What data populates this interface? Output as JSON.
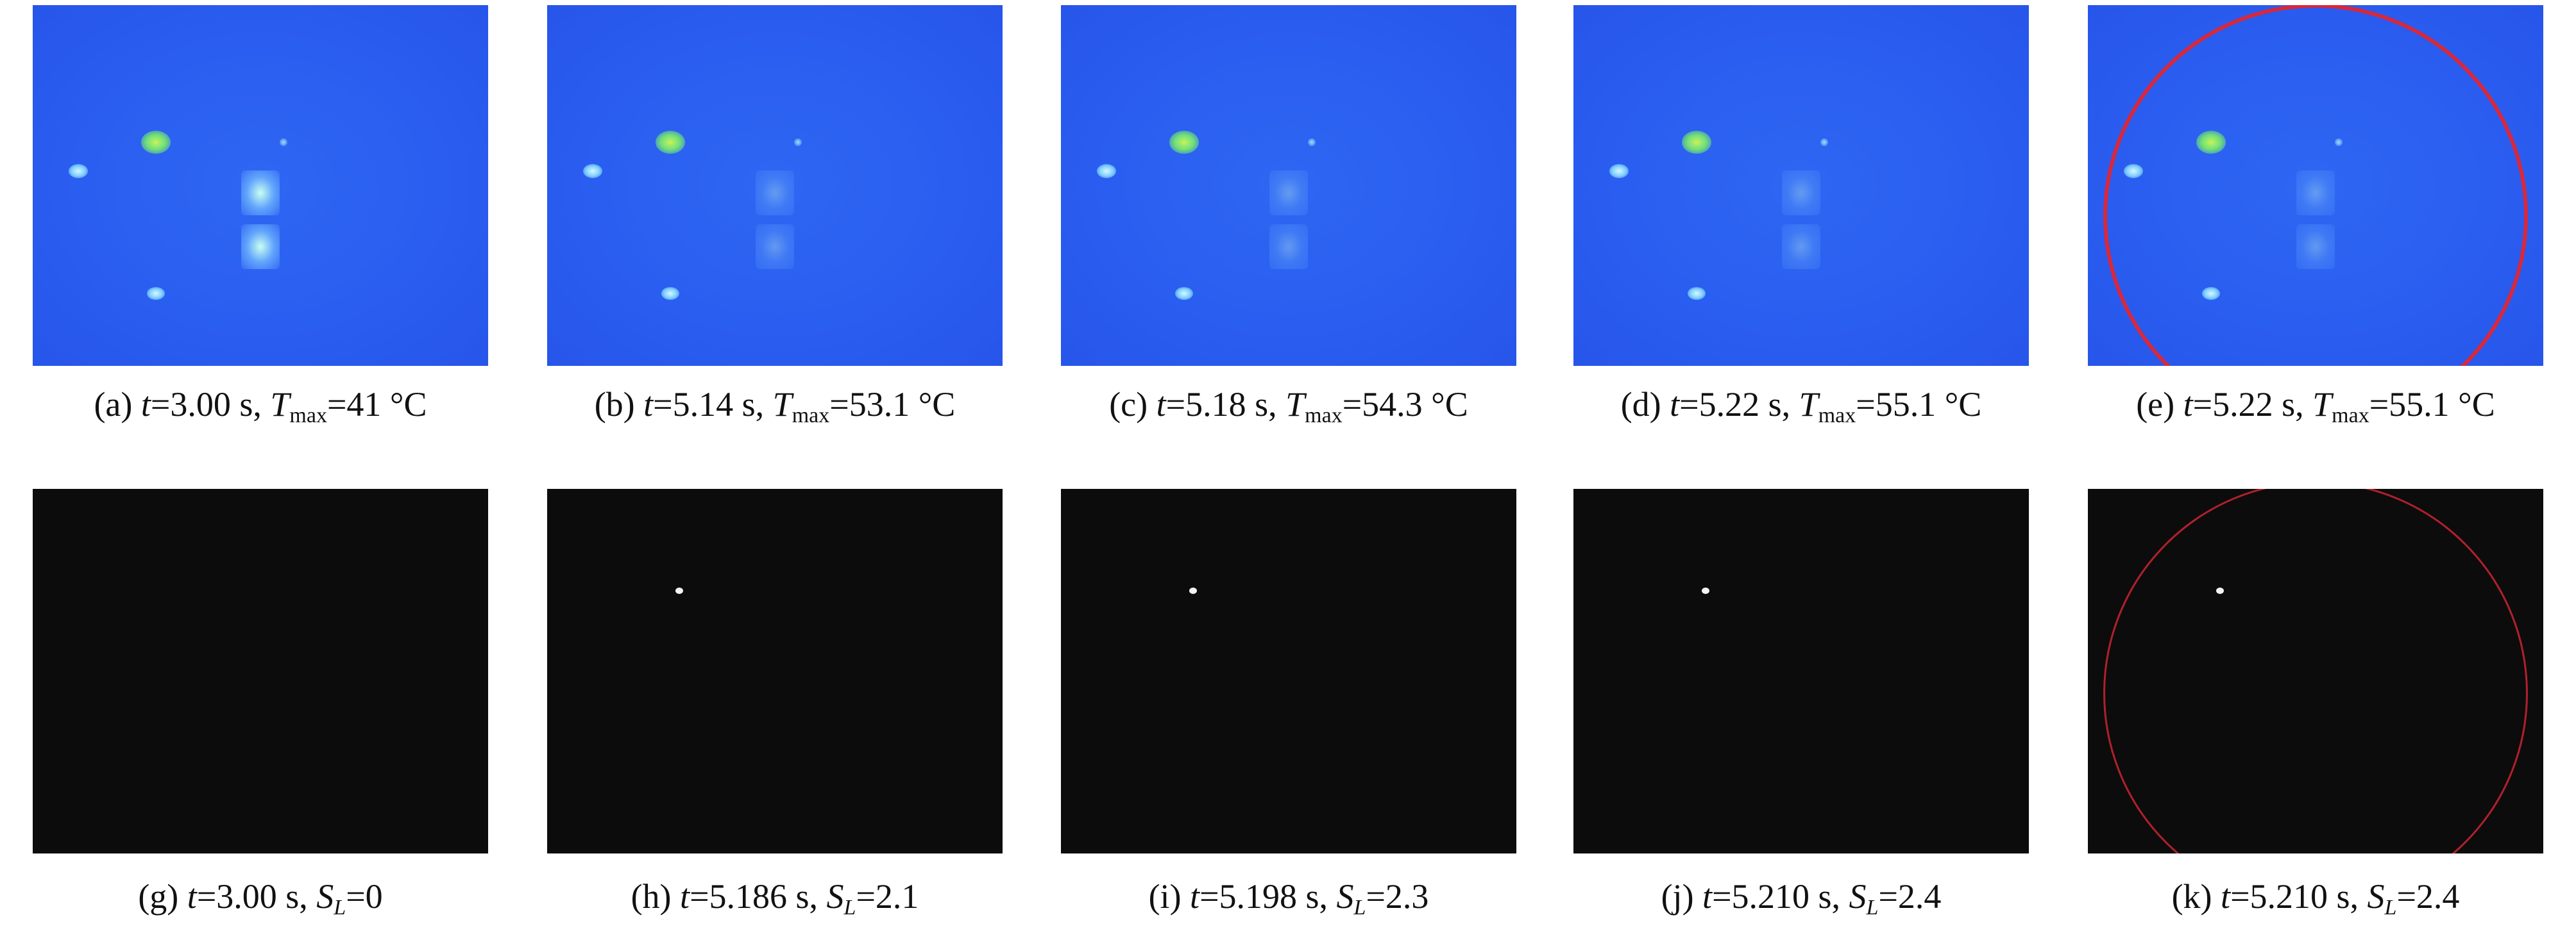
{
  "rows": [
    [
      {
        "label": "(a)",
        "var1": "t",
        "val1": "=3.00 s,",
        "var2": "T",
        "sub2": "max",
        "val2": "=41 °C"
      },
      {
        "label": "(b)",
        "var1": "t",
        "val1": "=5.14 s,",
        "var2": "T",
        "sub2": "max",
        "val2": "=53.1 °C"
      },
      {
        "label": "(c)",
        "var1": "t",
        "val1": "=5.18 s,",
        "var2": "T",
        "sub2": "max",
        "val2": "=54.3 °C"
      },
      {
        "label": "(d)",
        "var1": "t",
        "val1": "=5.22 s,",
        "var2": "T",
        "sub2": "max",
        "val2": "=55.1 °C"
      },
      {
        "label": "(e)",
        "var1": "t",
        "val1": "=5.22 s,",
        "var2": "T",
        "sub2": "max",
        "val2": "=55.1 °C"
      }
    ],
    [
      {
        "label": "(g)",
        "var1": "t",
        "val1": "=3.00 s,",
        "var2": "S",
        "sub2": "L",
        "val2": "=0"
      },
      {
        "label": "(h)",
        "var1": "t",
        "val1": "=5.186 s,",
        "var2": "S",
        "sub2": "L",
        "val2": "=2.1"
      },
      {
        "label": "(i)",
        "var1": "t",
        "val1": "=5.198 s,",
        "var2": "S",
        "sub2": "L",
        "val2": "=2.3"
      },
      {
        "label": "(j)",
        "var1": "t",
        "val1": "=5.210 s,",
        "var2": "S",
        "sub2": "L",
        "val2": "=2.4"
      },
      {
        "label": "(k)",
        "var1": "t",
        "val1": "=5.210 s,",
        "var2": "S",
        "sub2": "L",
        "val2": "=2.4"
      }
    ]
  ]
}
